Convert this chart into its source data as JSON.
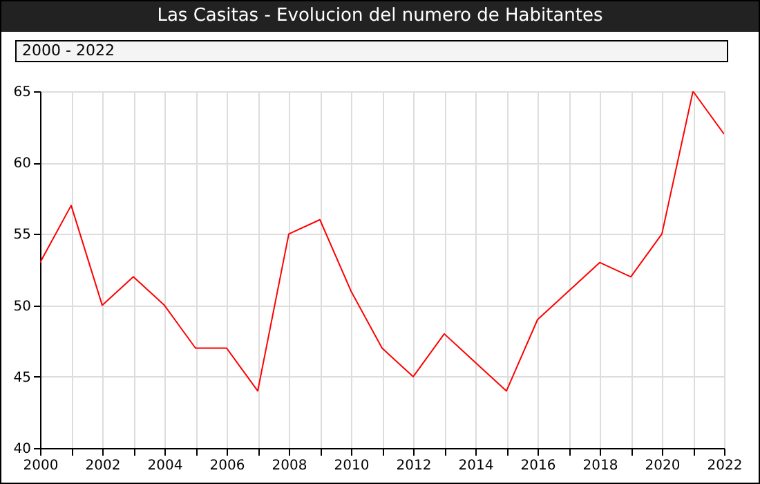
{
  "chart_data": {
    "type": "line",
    "title": "Las Casitas - Evolucion del numero de Habitantes",
    "annotations": [
      "2000 - 2022"
    ],
    "x": [
      2000,
      2001,
      2002,
      2003,
      2004,
      2005,
      2006,
      2007,
      2008,
      2009,
      2010,
      2011,
      2012,
      2013,
      2014,
      2015,
      2016,
      2017,
      2018,
      2019,
      2020,
      2021,
      2022
    ],
    "series": [
      {
        "color": "#ff0000",
        "values": [
          53,
          57,
          50,
          52,
          50,
          47,
          47,
          44,
          55,
          56,
          51,
          47,
          45,
          48,
          46,
          44,
          49,
          51,
          53,
          52,
          55,
          65,
          62
        ]
      }
    ],
    "xlim": [
      2000,
      2022
    ],
    "xticks": [
      2000,
      {
        "value": 2001,
        "label": null
      },
      2002,
      {
        "value": 2003,
        "label": null
      },
      2004,
      {
        "value": 2005,
        "label": null
      },
      2006,
      {
        "value": 2007,
        "label": null
      },
      2008,
      {
        "value": 2009,
        "label": null
      },
      2010,
      {
        "value": 2011,
        "label": null
      },
      2012,
      {
        "value": 2013,
        "label": null
      },
      2014,
      {
        "value": 2015,
        "label": null
      },
      2016,
      {
        "value": 2017,
        "label": null
      },
      2018,
      {
        "value": 2019,
        "label": null
      },
      2020,
      {
        "value": 2021,
        "label": null
      },
      2022
    ],
    "ylim": [
      40,
      65
    ],
    "yticks": [
      40,
      45,
      50,
      55,
      60,
      65
    ],
    "grid": true,
    "legend": false,
    "marker": "none",
    "line_style": "solid"
  }
}
